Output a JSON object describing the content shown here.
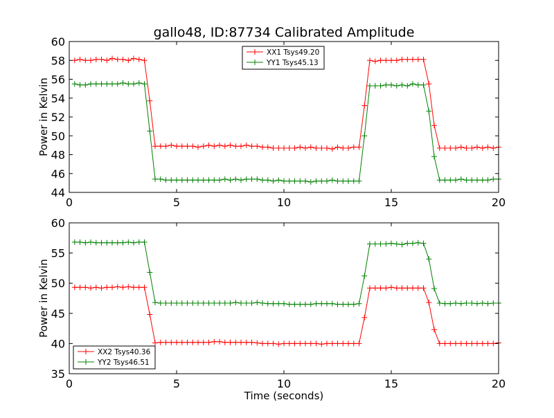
{
  "figure": {
    "title": "gallo48, ID:87734 Calibrated Amplitude"
  },
  "chart_data": [
    {
      "type": "line",
      "title": "gallo48, ID:87734 Calibrated Amplitude",
      "xlabel": "",
      "ylabel": "Power in Kelvin",
      "xlim": [
        0,
        20
      ],
      "ylim": [
        44,
        60
      ],
      "xticks": [
        0,
        5,
        10,
        15,
        20
      ],
      "yticks": [
        44,
        46,
        48,
        50,
        52,
        54,
        56,
        58,
        60
      ],
      "grid": false,
      "legend": "top-center",
      "x": [
        0.25,
        0.5,
        0.75,
        1.0,
        1.25,
        1.5,
        1.75,
        2.0,
        2.25,
        2.5,
        2.75,
        3.0,
        3.25,
        3.5,
        3.75,
        4.0,
        4.25,
        4.5,
        4.75,
        5.0,
        5.25,
        5.5,
        5.75,
        6.0,
        6.25,
        6.5,
        6.75,
        7.0,
        7.25,
        7.5,
        7.75,
        8.0,
        8.25,
        8.5,
        8.75,
        9.0,
        9.25,
        9.5,
        9.75,
        10.0,
        10.25,
        10.5,
        10.75,
        11.0,
        11.25,
        11.5,
        11.75,
        12.0,
        12.25,
        12.5,
        12.75,
        13.0,
        13.25,
        13.5,
        13.75,
        14.0,
        14.25,
        14.5,
        14.75,
        15.0,
        15.25,
        15.5,
        15.75,
        16.0,
        16.25,
        16.5,
        16.75,
        17.0,
        17.25,
        17.5,
        17.75,
        18.0,
        18.25,
        18.5,
        18.75,
        19.0,
        19.25,
        19.5,
        19.75,
        20.0
      ],
      "series": [
        {
          "name": "XX1 Tsys49.20",
          "color": "#ff0000",
          "values": [
            58.0,
            58.1,
            58.0,
            58.0,
            58.1,
            58.1,
            58.0,
            58.2,
            58.1,
            58.1,
            58.0,
            58.2,
            58.1,
            58.0,
            53.7,
            48.9,
            48.9,
            48.9,
            49.0,
            48.9,
            48.9,
            48.9,
            48.9,
            48.8,
            48.9,
            49.0,
            48.9,
            49.0,
            48.9,
            49.0,
            48.9,
            48.9,
            49.0,
            48.9,
            48.9,
            48.8,
            48.8,
            48.7,
            48.7,
            48.7,
            48.7,
            48.7,
            48.8,
            48.7,
            48.8,
            48.7,
            48.7,
            48.7,
            48.6,
            48.8,
            48.7,
            48.7,
            48.8,
            48.8,
            53.2,
            58.0,
            57.9,
            58.0,
            58.0,
            58.0,
            58.0,
            58.1,
            58.1,
            58.1,
            58.1,
            58.1,
            55.5,
            51.1,
            48.7,
            48.7,
            48.7,
            48.7,
            48.8,
            48.7,
            48.7,
            48.8,
            48.7,
            48.8,
            48.7,
            48.8
          ]
        },
        {
          "name": "YY1 Tsys45.13",
          "color": "#008000",
          "values": [
            55.5,
            55.4,
            55.4,
            55.5,
            55.5,
            55.5,
            55.5,
            55.5,
            55.5,
            55.6,
            55.5,
            55.5,
            55.6,
            55.5,
            50.5,
            45.4,
            45.4,
            45.3,
            45.3,
            45.3,
            45.3,
            45.3,
            45.3,
            45.3,
            45.3,
            45.3,
            45.3,
            45.3,
            45.4,
            45.3,
            45.4,
            45.3,
            45.4,
            45.4,
            45.4,
            45.3,
            45.3,
            45.2,
            45.3,
            45.2,
            45.2,
            45.2,
            45.2,
            45.2,
            45.1,
            45.2,
            45.2,
            45.2,
            45.3,
            45.2,
            45.2,
            45.2,
            45.2,
            45.2,
            50.0,
            55.3,
            55.3,
            55.3,
            55.4,
            55.4,
            55.3,
            55.4,
            55.3,
            55.5,
            55.4,
            55.4,
            52.6,
            47.8,
            45.3,
            45.3,
            45.3,
            45.3,
            45.4,
            45.3,
            45.3,
            45.3,
            45.3,
            45.3,
            45.4,
            45.4
          ]
        }
      ]
    },
    {
      "type": "line",
      "title": "",
      "xlabel": "Time (seconds)",
      "ylabel": "Power in Kelvin",
      "xlim": [
        0,
        20
      ],
      "ylim": [
        35,
        60
      ],
      "xticks": [
        0,
        5,
        10,
        15,
        20
      ],
      "yticks": [
        35,
        40,
        45,
        50,
        55,
        60
      ],
      "grid": false,
      "legend": "bottom-left",
      "x": [
        0.25,
        0.5,
        0.75,
        1.0,
        1.25,
        1.5,
        1.75,
        2.0,
        2.25,
        2.5,
        2.75,
        3.0,
        3.25,
        3.5,
        3.75,
        4.0,
        4.25,
        4.5,
        4.75,
        5.0,
        5.25,
        5.5,
        5.75,
        6.0,
        6.25,
        6.5,
        6.75,
        7.0,
        7.25,
        7.5,
        7.75,
        8.0,
        8.25,
        8.5,
        8.75,
        9.0,
        9.25,
        9.5,
        9.75,
        10.0,
        10.25,
        10.5,
        10.75,
        11.0,
        11.25,
        11.5,
        11.75,
        12.0,
        12.25,
        12.5,
        12.75,
        13.0,
        13.25,
        13.5,
        13.75,
        14.0,
        14.25,
        14.5,
        14.75,
        15.0,
        15.25,
        15.5,
        15.75,
        16.0,
        16.25,
        16.5,
        16.75,
        17.0,
        17.25,
        17.5,
        17.75,
        18.0,
        18.25,
        18.5,
        18.75,
        19.0,
        19.25,
        19.5,
        19.75,
        20.0
      ],
      "series": [
        {
          "name": "XX2 Tsys40.36",
          "color": "#ff0000",
          "values": [
            49.3,
            49.3,
            49.3,
            49.2,
            49.3,
            49.2,
            49.3,
            49.3,
            49.4,
            49.3,
            49.4,
            49.3,
            49.3,
            49.3,
            44.8,
            40.1,
            40.2,
            40.2,
            40.2,
            40.2,
            40.2,
            40.2,
            40.2,
            40.2,
            40.2,
            40.2,
            40.3,
            40.3,
            40.2,
            40.2,
            40.2,
            40.2,
            40.2,
            40.2,
            40.1,
            40.0,
            40.0,
            40.0,
            39.9,
            40.0,
            40.0,
            40.0,
            40.0,
            40.0,
            40.0,
            40.0,
            39.9,
            40.0,
            40.0,
            40.0,
            40.0,
            40.0,
            40.0,
            40.0,
            44.3,
            49.2,
            49.2,
            49.2,
            49.2,
            49.3,
            49.2,
            49.2,
            49.2,
            49.2,
            49.2,
            49.2,
            46.8,
            42.3,
            40.0,
            40.0,
            40.0,
            40.0,
            40.0,
            40.0,
            40.0,
            40.0,
            40.0,
            40.0,
            40.0,
            40.1
          ]
        },
        {
          "name": "YY2 Tsys46.51",
          "color": "#008000",
          "values": [
            56.8,
            56.8,
            56.7,
            56.8,
            56.7,
            56.7,
            56.7,
            56.7,
            56.7,
            56.7,
            56.8,
            56.7,
            56.8,
            56.8,
            51.8,
            46.8,
            46.7,
            46.7,
            46.7,
            46.7,
            46.7,
            46.7,
            46.7,
            46.7,
            46.7,
            46.7,
            46.7,
            46.7,
            46.7,
            46.7,
            46.8,
            46.7,
            46.7,
            46.7,
            46.8,
            46.7,
            46.6,
            46.6,
            46.6,
            46.6,
            46.5,
            46.5,
            46.5,
            46.5,
            46.5,
            46.6,
            46.6,
            46.6,
            46.6,
            46.5,
            46.5,
            46.5,
            46.5,
            46.6,
            51.2,
            56.5,
            56.5,
            56.5,
            56.5,
            56.6,
            56.5,
            56.4,
            56.6,
            56.6,
            56.7,
            56.6,
            54.0,
            49.1,
            46.7,
            46.6,
            46.6,
            46.7,
            46.6,
            46.7,
            46.7,
            46.6,
            46.7,
            46.6,
            46.7,
            46.7
          ]
        }
      ]
    }
  ]
}
